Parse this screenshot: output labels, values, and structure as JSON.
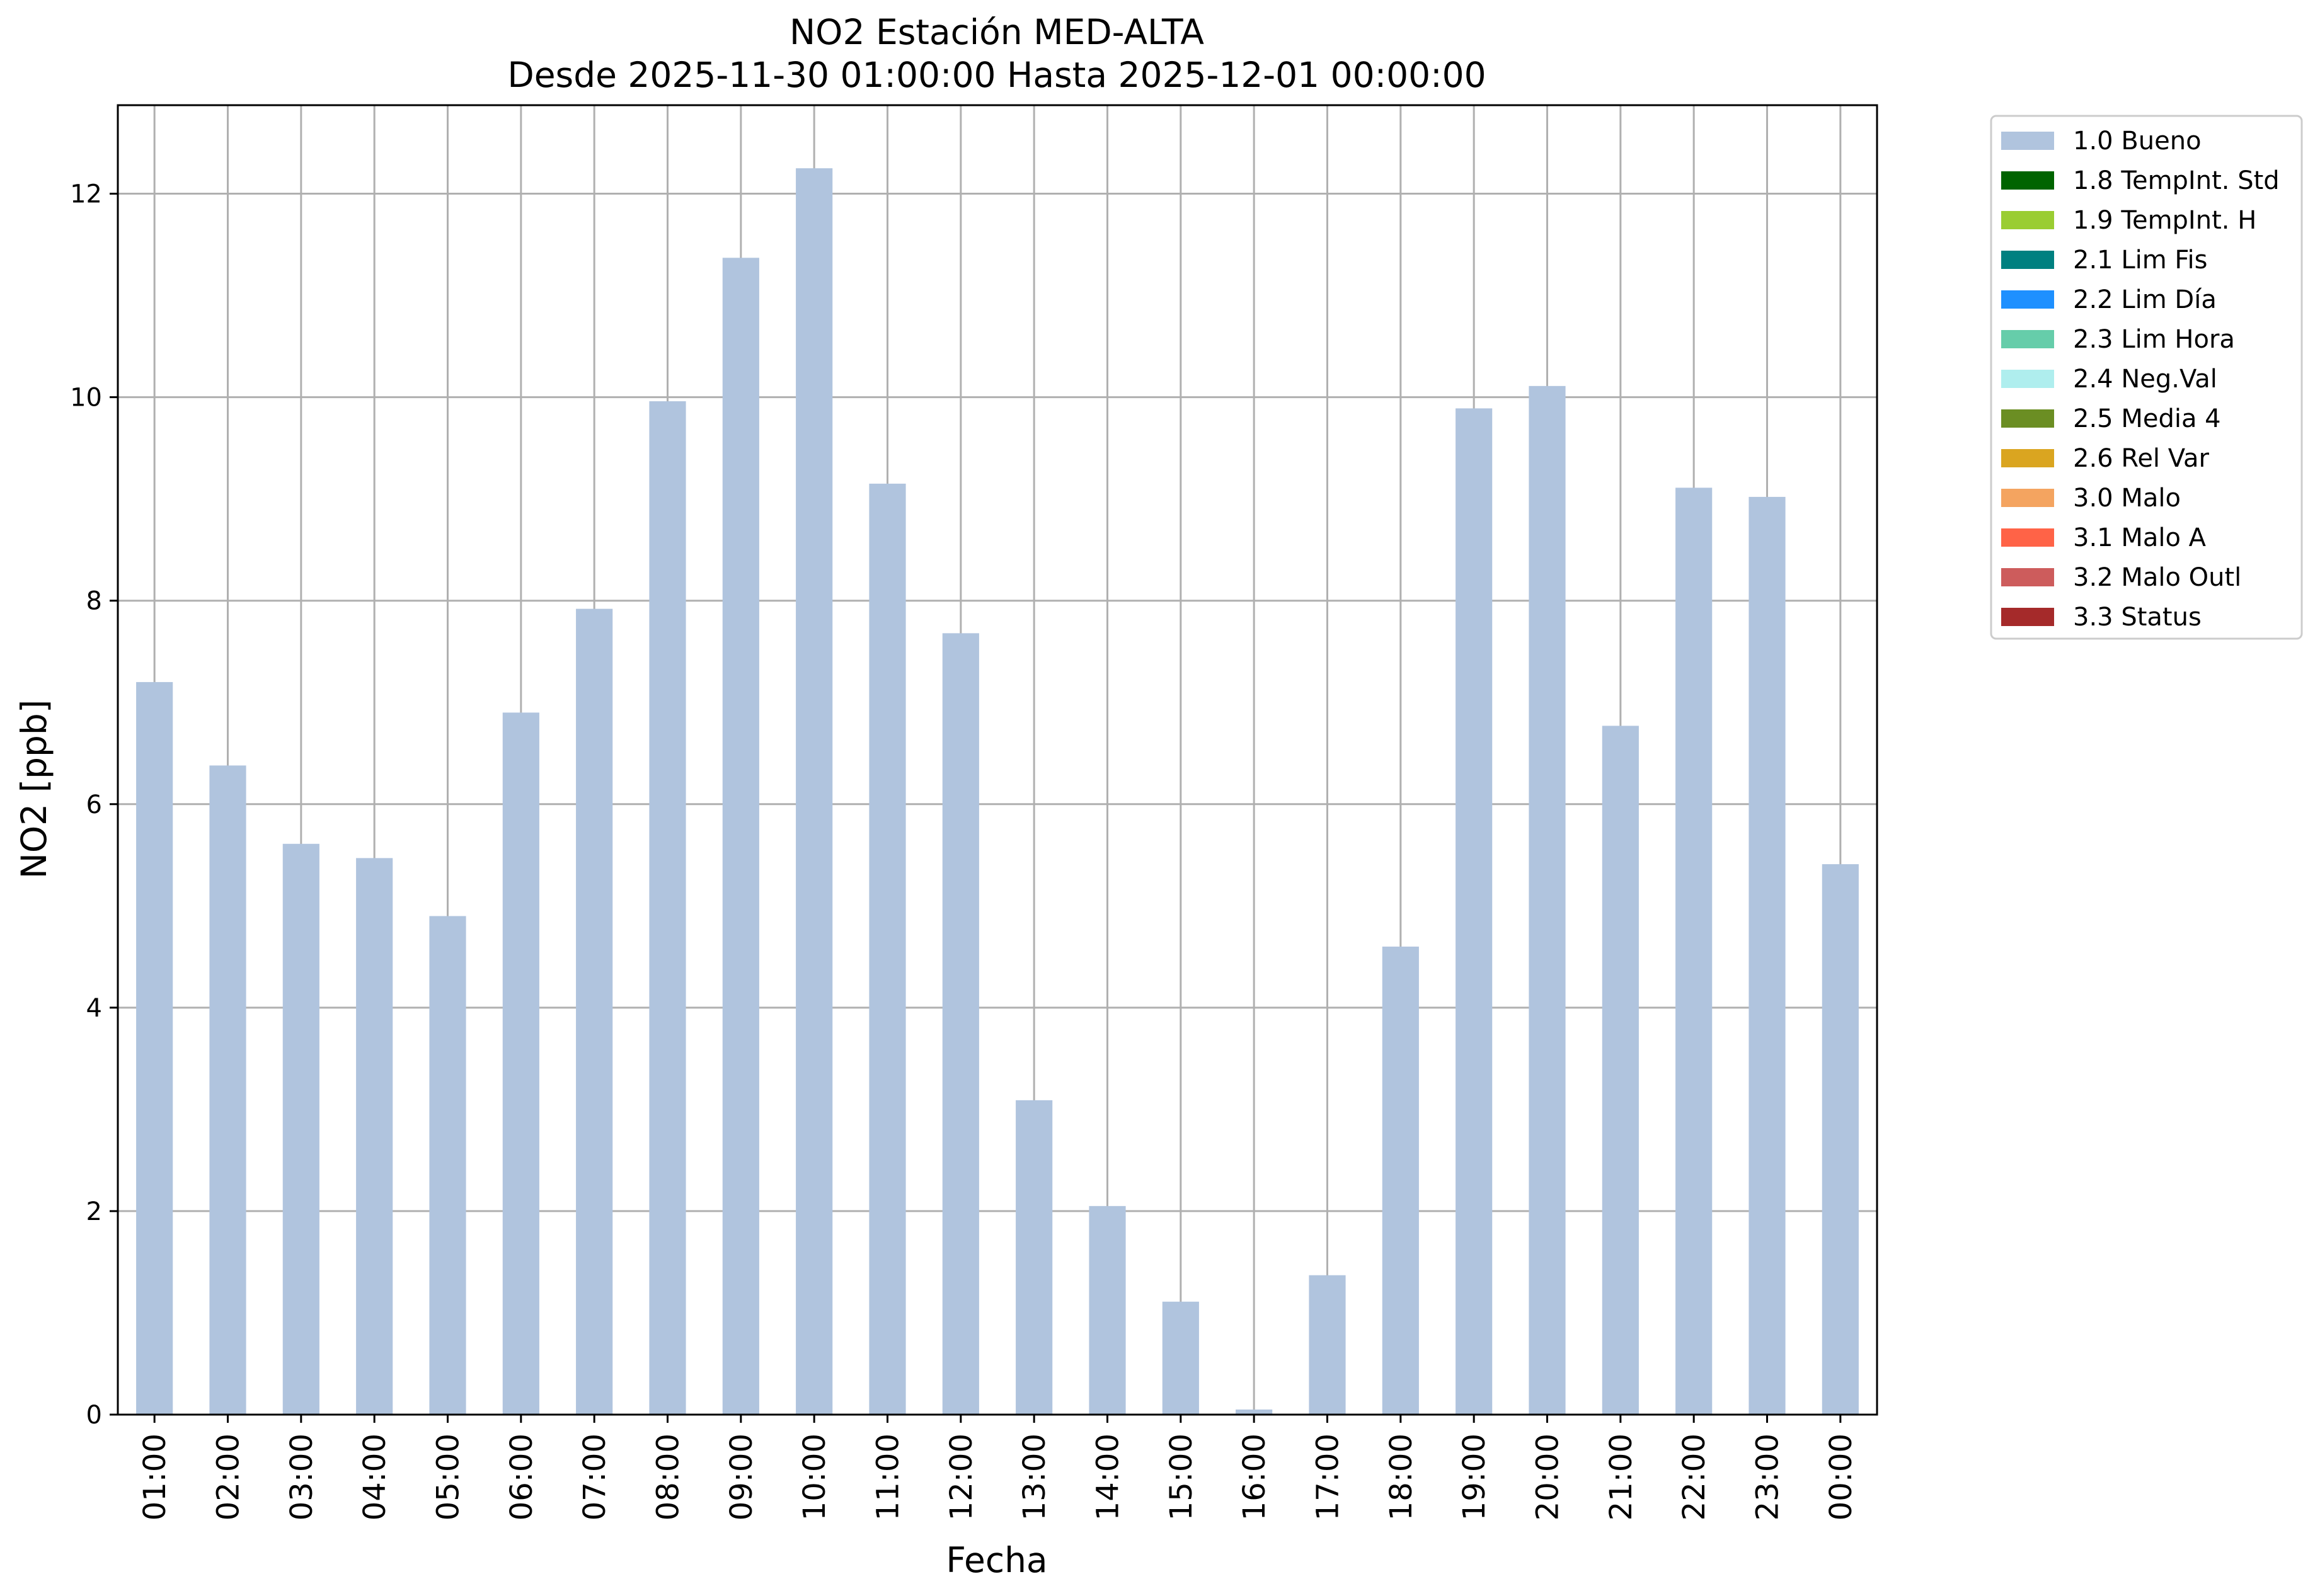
{
  "chart_data": {
    "type": "bar",
    "title": "NO2 Estación MED-ALTA",
    "subtitle": "Desde 2025-11-30 01:00:00 Hasta 2025-12-01 00:00:00",
    "xlabel": "Fecha",
    "ylabel": "NO2 [ppb]",
    "ylim": [
      0,
      12.87
    ],
    "yticks": [
      "0",
      "2",
      "4",
      "6",
      "8",
      "10",
      "12"
    ],
    "grid": true,
    "legend_position": "outside right",
    "categories": [
      "01:00",
      "02:00",
      "03:00",
      "04:00",
      "05:00",
      "06:00",
      "07:00",
      "08:00",
      "09:00",
      "10:00",
      "11:00",
      "12:00",
      "13:00",
      "14:00",
      "15:00",
      "16:00",
      "17:00",
      "18:00",
      "19:00",
      "20:00",
      "21:00",
      "22:00",
      "23:00",
      "00:00"
    ],
    "series": [
      {
        "name": "1.0 Bueno",
        "color": "#b0c4de",
        "values": [
          7.2,
          6.38,
          5.61,
          5.47,
          4.9,
          6.9,
          7.92,
          9.96,
          11.37,
          12.25,
          9.15,
          7.68,
          3.09,
          2.05,
          1.11,
          0.05,
          1.37,
          4.6,
          9.89,
          10.11,
          6.77,
          9.11,
          9.02,
          5.41
        ]
      }
    ],
    "legend": [
      {
        "label": "1.0 Bueno",
        "color": "#b0c4de"
      },
      {
        "label": "1.8 TempInt. Std",
        "color": "#006400"
      },
      {
        "label": "1.9 TempInt. H",
        "color": "#9acd32"
      },
      {
        "label": "2.1 Lim Fis",
        "color": "#008080"
      },
      {
        "label": "2.2 Lim Día",
        "color": "#1e90ff"
      },
      {
        "label": "2.3 Lim Hora",
        "color": "#66cdaa"
      },
      {
        "label": "2.4 Neg.Val",
        "color": "#afeeee"
      },
      {
        "label": "2.5 Media 4",
        "color": "#6b8e23"
      },
      {
        "label": "2.6 Rel Var",
        "color": "#daa520"
      },
      {
        "label": "3.0 Malo",
        "color": "#f4a460"
      },
      {
        "label": "3.1 Malo A",
        "color": "#ff6347"
      },
      {
        "label": "3.2 Malo Outl",
        "color": "#cd5c5c"
      },
      {
        "label": "3.3 Status",
        "color": "#a52a2a"
      }
    ]
  }
}
